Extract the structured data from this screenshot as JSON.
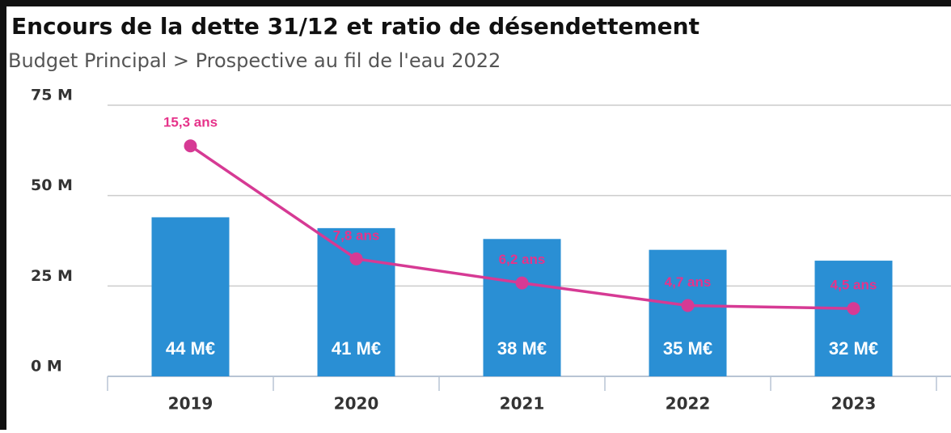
{
  "chart_data": {
    "type": "bar",
    "title": "Encours de la dette 31/12 et ratio de désendettement",
    "subtitle": "Budget Principal > Prospective au fil de l'eau 2022",
    "categories": [
      "2019",
      "2020",
      "2021",
      "2022",
      "2023"
    ],
    "series": [
      {
        "type": "bar",
        "color": "#2a8fd4",
        "values": [
          44,
          41,
          38,
          35,
          32
        ],
        "value_labels": [
          "44 M€",
          "41 M€",
          "38 M€",
          "35 M€",
          "32 M€"
        ]
      },
      {
        "type": "line",
        "axis": "y2",
        "color": "#d63a94",
        "values": [
          15.3,
          7.8,
          6.2,
          4.7,
          4.5
        ],
        "value_labels": [
          "15,3 ans",
          "7,8 ans",
          "6,2 ans",
          "4,7 ans",
          "4,5 ans"
        ]
      }
    ],
    "ylim": [
      0,
      75
    ],
    "yticks": [
      {
        "value": 0,
        "label": "0 M"
      },
      {
        "value": 25,
        "label": "25 M"
      },
      {
        "value": 50,
        "label": "50 M"
      },
      {
        "value": 75,
        "label": "75 M"
      }
    ],
    "y2lim": [
      0,
      18
    ],
    "grid": true
  }
}
